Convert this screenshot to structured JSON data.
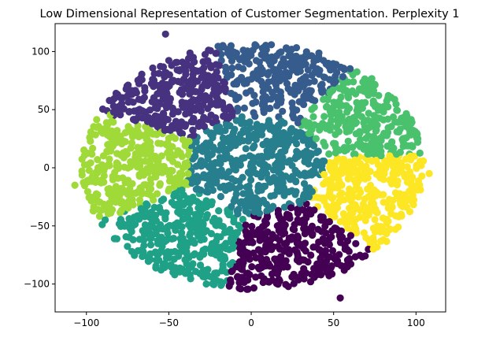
{
  "chart_data": {
    "type": "scatter",
    "title": "Low Dimensional Representation of Customer Segmentation. Perplexity 1",
    "xlabel": "",
    "ylabel": "",
    "xlim": [
      -119,
      118
    ],
    "ylim": [
      -124,
      124
    ],
    "xticks": [
      -100,
      -50,
      0,
      50,
      100
    ],
    "yticks": [
      -100,
      -50,
      0,
      50,
      100
    ],
    "grid": false,
    "legend": "none",
    "cluster_colors": [
      "#440154",
      "#46327e",
      "#365c8d",
      "#277f8e",
      "#1fa187",
      "#4ac16d",
      "#a0da39",
      "#fde725"
    ],
    "clusters": [
      {
        "color": "#440154",
        "center": [
          28,
          -72
        ],
        "spread": [
          25,
          20
        ]
      },
      {
        "color": "#46327e",
        "center": [
          -48,
          70
        ],
        "spread": [
          26,
          20
        ]
      },
      {
        "color": "#365c8d",
        "center": [
          18,
          84
        ],
        "spread": [
          24,
          16
        ]
      },
      {
        "color": "#277f8e",
        "center": [
          2,
          0
        ],
        "spread": [
          26,
          18
        ]
      },
      {
        "color": "#1fa187",
        "center": [
          -45,
          -60
        ],
        "spread": [
          26,
          22
        ]
      },
      {
        "color": "#4ac16d",
        "center": [
          75,
          45
        ],
        "spread": [
          22,
          22
        ]
      },
      {
        "color": "#a0da39",
        "center": [
          -78,
          2
        ],
        "spread": [
          22,
          28
        ]
      },
      {
        "color": "#fde725",
        "center": [
          78,
          -25
        ],
        "spread": [
          22,
          28
        ]
      }
    ],
    "outliers": [
      {
        "x": -52,
        "y": 115,
        "color": "#46327e"
      },
      {
        "x": 54,
        "y": -112,
        "color": "#440154"
      },
      {
        "x": -107,
        "y": -15,
        "color": "#a0da39"
      },
      {
        "x": 108,
        "y": -5,
        "color": "#fde725"
      }
    ]
  }
}
